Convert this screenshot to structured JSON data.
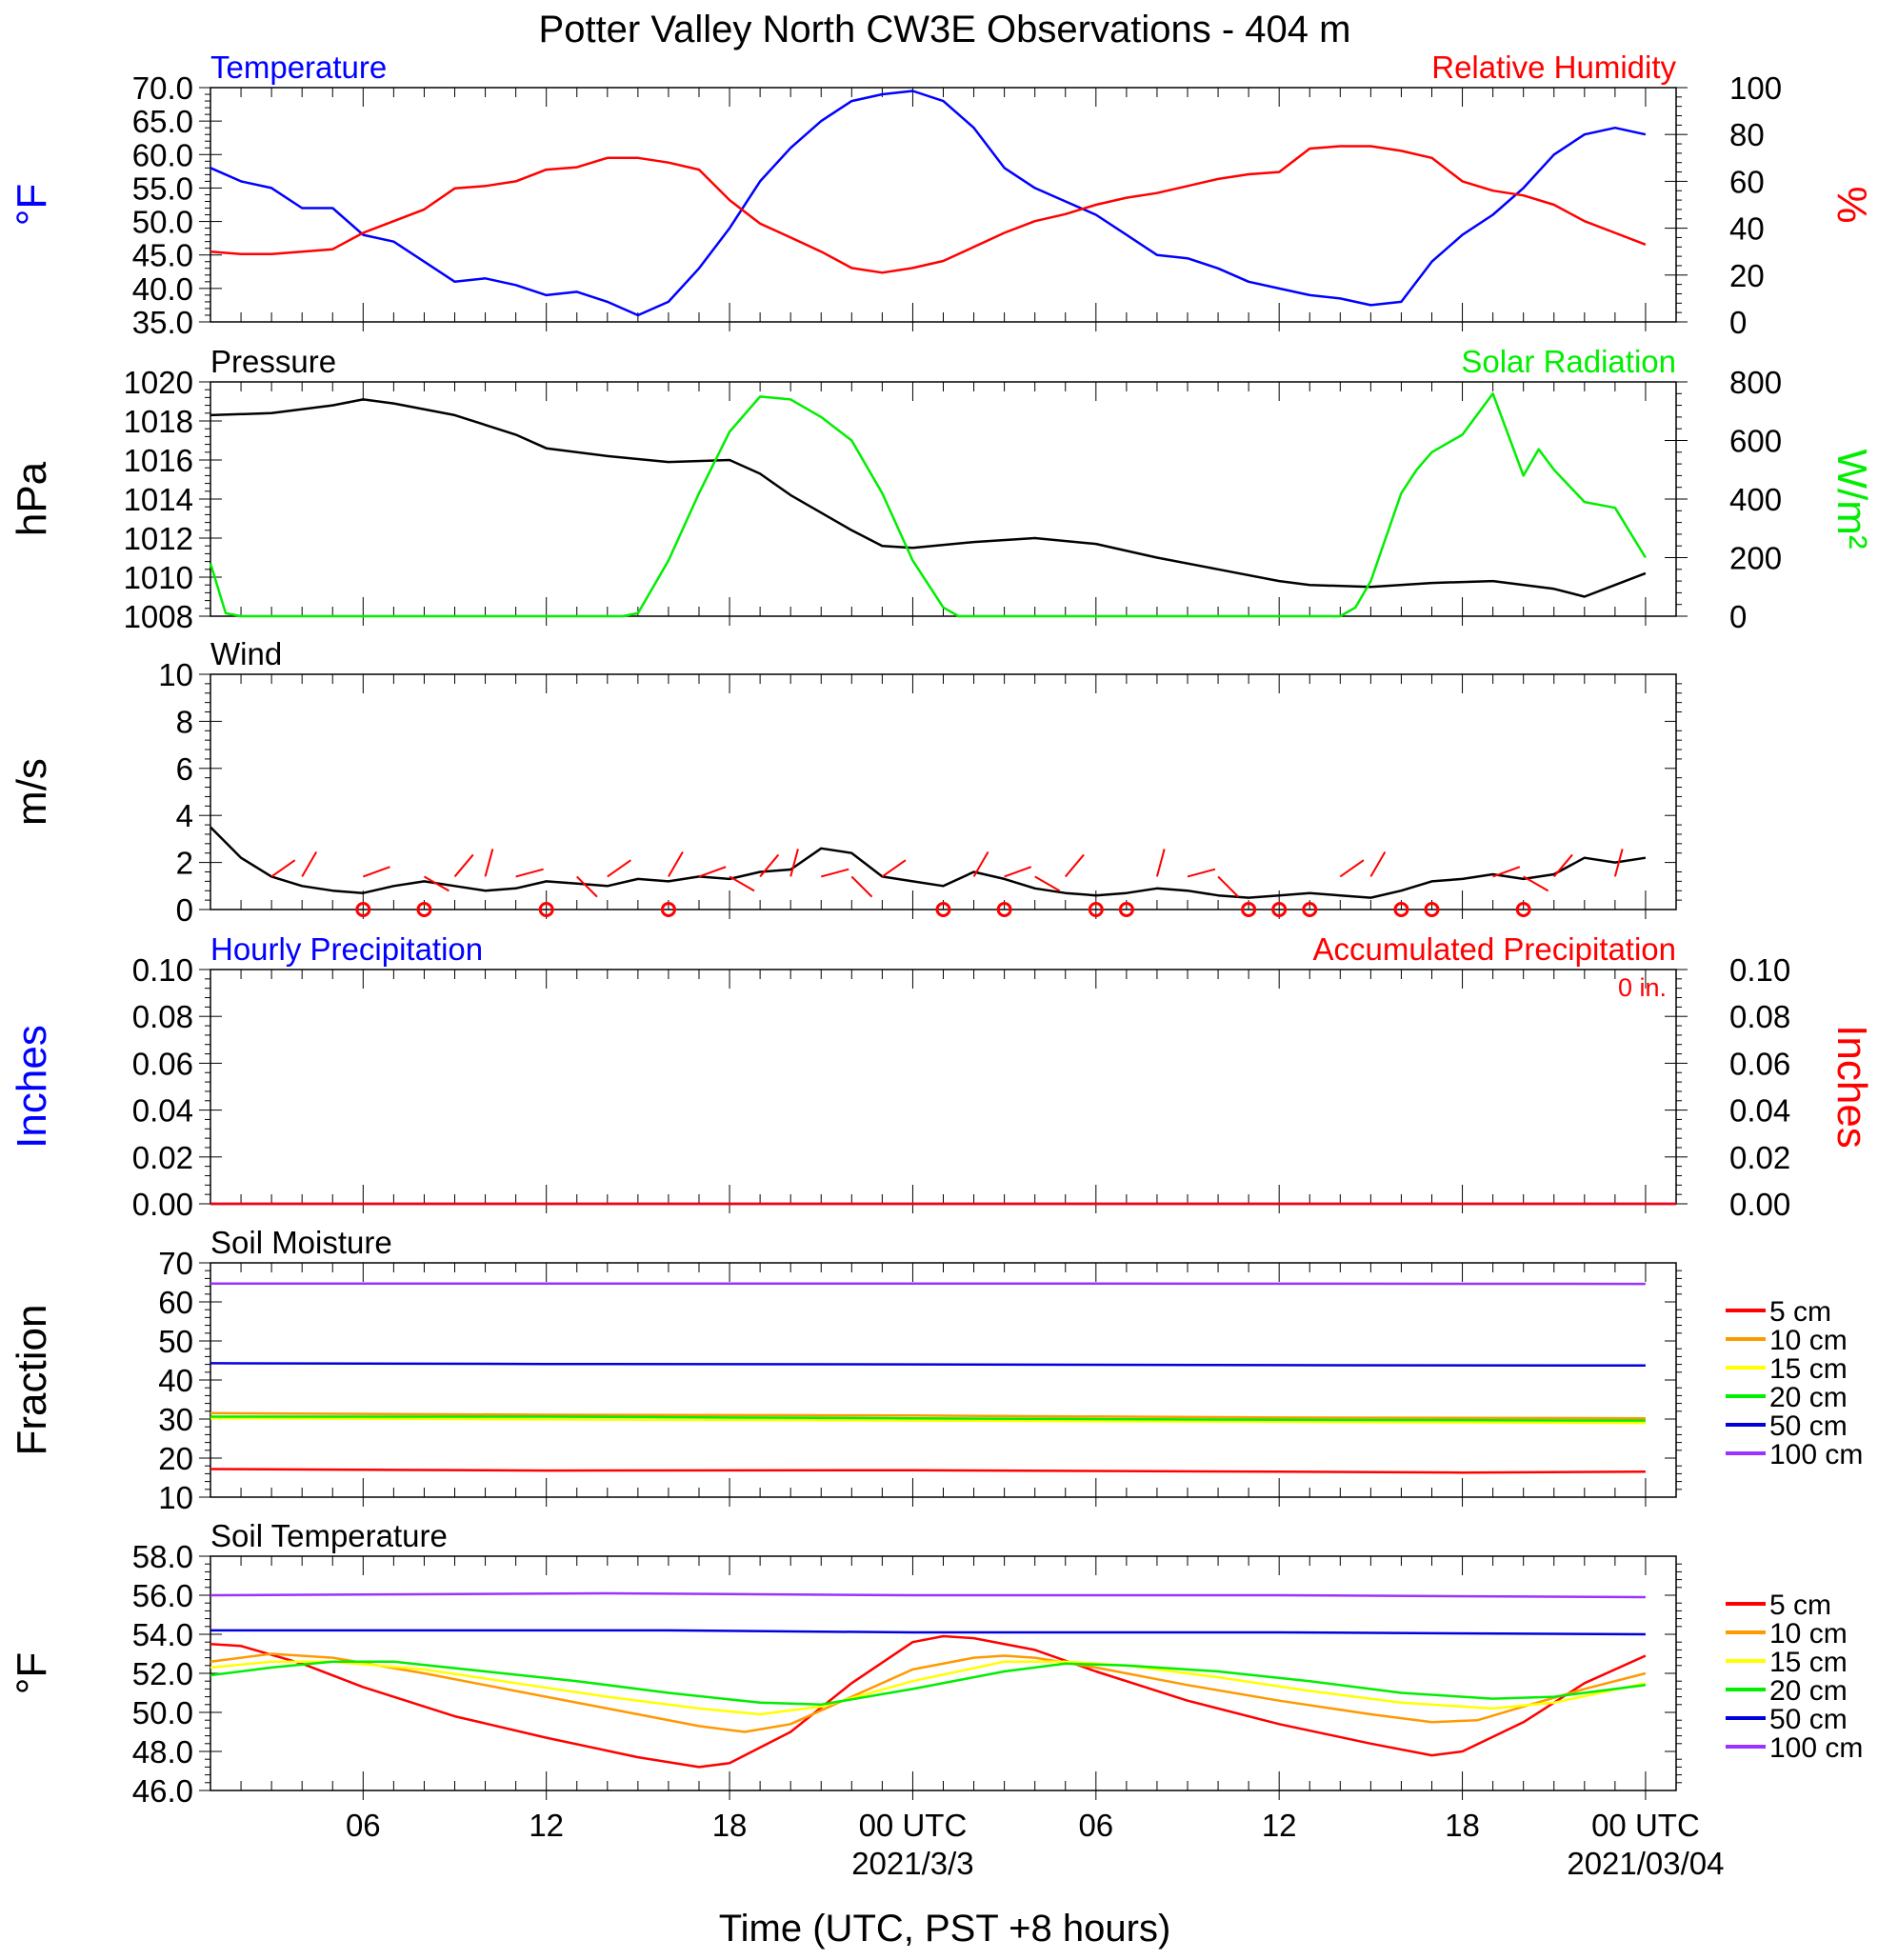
{
  "title": "Potter Valley North CW3E Observations - 404 m",
  "xaxis": {
    "label": "Time (UTC, PST +8 hours)",
    "ticks": [
      {
        "t": 6,
        "label": "06"
      },
      {
        "t": 12,
        "label": "12"
      },
      {
        "t": 18,
        "label": "18"
      },
      {
        "t": 24,
        "label": "00 UTC"
      },
      {
        "t": 30,
        "label": "06"
      },
      {
        "t": 36,
        "label": "12"
      },
      {
        "t": 42,
        "label": "18"
      },
      {
        "t": 48,
        "label": "00 UTC"
      }
    ],
    "dates": [
      {
        "t": 24,
        "label": "2021/3/3"
      },
      {
        "t": 48,
        "label": "2021/03/04"
      }
    ],
    "range": [
      1,
      49
    ]
  },
  "colors": {
    "blue": "#0000ff",
    "red": "#ff0000",
    "green": "#00ee00",
    "black": "#000000",
    "orange": "#ff9900",
    "yellow": "#ffff00",
    "purple": "#9933ff"
  },
  "chart_data": [
    {
      "id": "temp_rh",
      "type": "line",
      "title_left": "Temperature",
      "title_right": "Relative Humidity",
      "ylabel_left": "°F",
      "ylabel_right": "%",
      "ylim_left": [
        35,
        70
      ],
      "ylim_right": [
        0,
        100
      ],
      "yticks_left": [
        "35.0",
        "40.0",
        "45.0",
        "50.0",
        "55.0",
        "60.0",
        "65.0",
        "70.0"
      ],
      "yticks_right": [
        "0",
        "20",
        "40",
        "60",
        "80",
        "100"
      ],
      "series": [
        {
          "name": "Temperature",
          "axis": "left",
          "color": "#0000ff",
          "x": [
            1,
            2,
            3,
            4,
            5,
            6,
            7,
            8,
            9,
            10,
            11,
            12,
            13,
            14,
            15,
            16,
            17,
            18,
            19,
            20,
            21,
            22,
            23,
            24,
            25,
            26,
            27,
            28,
            29,
            30,
            31,
            32,
            33,
            34,
            35,
            36,
            37,
            38,
            39,
            40,
            41,
            42,
            43,
            44,
            45,
            46,
            47,
            48
          ],
          "y": [
            58,
            56,
            55,
            52,
            52,
            48,
            47,
            44,
            41,
            41.5,
            40.5,
            39,
            39.5,
            38,
            36,
            38,
            43,
            49,
            56,
            61,
            65,
            68,
            69,
            69.5,
            68,
            64,
            58,
            55,
            53,
            51,
            48,
            45,
            44.5,
            43,
            41,
            40,
            39,
            38.5,
            37.5,
            38,
            44,
            48,
            51,
            55,
            60,
            63,
            64,
            63
          ]
        },
        {
          "name": "Relative Humidity",
          "axis": "right",
          "color": "#ff0000",
          "x": [
            1,
            2,
            3,
            4,
            5,
            6,
            7,
            8,
            9,
            10,
            11,
            12,
            13,
            14,
            15,
            16,
            17,
            18,
            19,
            20,
            21,
            22,
            23,
            24,
            25,
            26,
            27,
            28,
            29,
            30,
            31,
            32,
            33,
            34,
            35,
            36,
            37,
            38,
            39,
            40,
            41,
            42,
            43,
            44,
            45,
            46,
            47,
            48
          ],
          "y": [
            30,
            29,
            29,
            30,
            31,
            38,
            43,
            48,
            57,
            58,
            60,
            65,
            66,
            70,
            70,
            68,
            65,
            52,
            42,
            36,
            30,
            23,
            21,
            23,
            26,
            32,
            38,
            43,
            46,
            50,
            53,
            55,
            58,
            61,
            63,
            64,
            74,
            75,
            75,
            73,
            70,
            60,
            56,
            54,
            50,
            43,
            38,
            33
          ]
        }
      ]
    },
    {
      "id": "pressure_solar",
      "type": "line",
      "title_left": "Pressure",
      "title_right": "Solar Radiation",
      "ylabel_left": "hPa",
      "ylabel_right": "W/m²",
      "ylim_left": [
        1008,
        1020
      ],
      "ylim_right": [
        0,
        800
      ],
      "yticks_left": [
        "1008",
        "1010",
        "1012",
        "1014",
        "1016",
        "1018",
        "1020"
      ],
      "yticks_right": [
        "0",
        "200",
        "400",
        "600",
        "800"
      ],
      "series": [
        {
          "name": "Pressure",
          "axis": "left",
          "color": "#000000",
          "x": [
            1,
            3,
            5,
            6,
            7,
            9,
            11,
            12,
            14,
            16,
            18,
            19,
            20,
            22,
            23,
            24,
            26,
            28,
            30,
            32,
            34,
            36,
            37,
            39,
            41,
            43,
            45,
            46,
            47,
            48
          ],
          "y": [
            1018.3,
            1018.4,
            1018.8,
            1019.1,
            1018.9,
            1018.3,
            1017.3,
            1016.6,
            1016.2,
            1015.9,
            1016.0,
            1015.3,
            1014.2,
            1012.4,
            1011.6,
            1011.5,
            1011.8,
            1012.0,
            1011.7,
            1011.0,
            1010.4,
            1009.8,
            1009.6,
            1009.5,
            1009.7,
            1009.8,
            1009.4,
            1009.0,
            1009.6,
            1010.2
          ]
        },
        {
          "name": "Solar Radiation",
          "axis": "right",
          "color": "#00ee00",
          "x": [
            1,
            1.5,
            2,
            14.5,
            15,
            16,
            17,
            18,
            19,
            20,
            21,
            21.5,
            22,
            23,
            24,
            25,
            25.5,
            26,
            38,
            38.5,
            39,
            40,
            40.5,
            41,
            42,
            43,
            44,
            44.5,
            45,
            46,
            47,
            48
          ],
          "y": [
            180,
            10,
            0,
            0,
            10,
            190,
            420,
            630,
            750,
            740,
            680,
            640,
            600,
            420,
            190,
            30,
            0,
            0,
            0,
            30,
            120,
            420,
            500,
            560,
            620,
            760,
            480,
            570,
            500,
            390,
            370,
            200
          ]
        }
      ]
    },
    {
      "id": "wind",
      "type": "line",
      "title_left": "Wind",
      "ylabel_left": "m/s",
      "ylim_left": [
        0,
        10
      ],
      "yticks_left": [
        "0",
        "2",
        "4",
        "6",
        "8",
        "10"
      ],
      "series": [
        {
          "name": "Wind",
          "axis": "left",
          "color": "#000000",
          "x": [
            1,
            2,
            3,
            4,
            5,
            6,
            7,
            8,
            9,
            10,
            11,
            12,
            13,
            14,
            15,
            16,
            17,
            18,
            19,
            20,
            21,
            22,
            23,
            24,
            25,
            26,
            27,
            28,
            29,
            30,
            31,
            32,
            33,
            34,
            35,
            36,
            37,
            38,
            39,
            40,
            41,
            42,
            43,
            44,
            45,
            46,
            47,
            48
          ],
          "y": [
            3.5,
            2.2,
            1.4,
            1.0,
            0.8,
            0.7,
            1.0,
            1.2,
            1.0,
            0.8,
            0.9,
            1.2,
            1.1,
            1.0,
            1.3,
            1.2,
            1.4,
            1.3,
            1.6,
            1.7,
            2.6,
            2.4,
            1.4,
            1.2,
            1.0,
            1.6,
            1.3,
            0.9,
            0.7,
            0.6,
            0.7,
            0.9,
            0.8,
            0.6,
            0.5,
            0.6,
            0.7,
            0.6,
            0.5,
            0.8,
            1.2,
            1.3,
            1.5,
            1.3,
            1.5,
            2.2,
            2.0,
            2.2
          ]
        }
      ],
      "calm_marker_times": [
        6,
        8,
        12,
        16,
        25,
        27,
        30,
        31,
        35,
        36,
        37,
        40,
        41,
        44
      ],
      "barb_times": [
        3,
        4,
        6,
        8,
        9,
        10,
        11,
        13,
        14,
        16,
        17,
        18,
        19,
        20,
        21,
        22,
        23,
        26,
        27,
        28,
        29,
        32,
        33,
        34,
        38,
        39,
        43,
        44,
        45,
        47
      ]
    },
    {
      "id": "precip",
      "type": "line",
      "title_left": "Hourly Precipitation",
      "title_right": "Accumulated Precipitation",
      "annotation": "0 in.",
      "ylabel_left": "Inches",
      "ylabel_right": "Inches",
      "ylim_left": [
        0,
        0.1
      ],
      "ylim_right": [
        0,
        0.1
      ],
      "yticks_left": [
        "0.00",
        "0.02",
        "0.04",
        "0.06",
        "0.08",
        "0.10"
      ],
      "yticks_right": [
        "0.00",
        "0.02",
        "0.04",
        "0.06",
        "0.08",
        "0.10"
      ],
      "series": [
        {
          "name": "Hourly Precipitation",
          "axis": "left",
          "color": "#0000ff",
          "x": [
            1,
            49
          ],
          "y": [
            0,
            0
          ]
        },
        {
          "name": "Accumulated Precipitation",
          "axis": "right",
          "color": "#ff0000",
          "x": [
            1,
            49
          ],
          "y": [
            0,
            0
          ]
        }
      ]
    },
    {
      "id": "soil_moisture",
      "type": "line",
      "title_left": "Soil Moisture",
      "ylabel_left": "Fraction",
      "ylim_left": [
        10,
        70
      ],
      "yticks_left": [
        "10",
        "20",
        "30",
        "40",
        "50",
        "60",
        "70"
      ],
      "legend": [
        "5 cm",
        "10 cm",
        "15 cm",
        "20 cm",
        "50 cm",
        "100 cm"
      ],
      "series": [
        {
          "name": "5 cm",
          "axis": "left",
          "color": "#ff0000",
          "x": [
            1,
            12,
            24,
            36,
            42,
            48
          ],
          "y": [
            17.2,
            16.8,
            16.9,
            16.5,
            16.3,
            16.5
          ]
        },
        {
          "name": "10 cm",
          "axis": "left",
          "color": "#ff9900",
          "x": [
            1,
            12,
            24,
            36,
            48
          ],
          "y": [
            31.5,
            31.1,
            30.9,
            30.4,
            30.2
          ]
        },
        {
          "name": "15 cm",
          "axis": "left",
          "color": "#ffff00",
          "x": [
            1,
            12,
            24,
            36,
            48
          ],
          "y": [
            30.2,
            29.9,
            29.6,
            29.3,
            29.0
          ]
        },
        {
          "name": "20 cm",
          "axis": "left",
          "color": "#00ee00",
          "x": [
            1,
            12,
            24,
            36,
            48
          ],
          "y": [
            30.6,
            30.6,
            30.2,
            29.8,
            29.6
          ]
        },
        {
          "name": "50 cm",
          "axis": "left",
          "color": "#0000dd",
          "x": [
            1,
            12,
            24,
            36,
            48
          ],
          "y": [
            44.3,
            44.1,
            44.0,
            43.8,
            43.7
          ]
        },
        {
          "name": "100 cm",
          "axis": "left",
          "color": "#9933ff",
          "x": [
            1,
            24,
            48
          ],
          "y": [
            64.7,
            64.7,
            64.6
          ]
        }
      ]
    },
    {
      "id": "soil_temp",
      "type": "line",
      "title_left": "Soil Temperature",
      "ylabel_left": "°F",
      "ylim_left": [
        46,
        58
      ],
      "yticks_left": [
        "46.0",
        "48.0",
        "50.0",
        "52.0",
        "54.0",
        "56.0",
        "58.0"
      ],
      "legend": [
        "5 cm",
        "10 cm",
        "15 cm",
        "20 cm",
        "50 cm",
        "100 cm"
      ],
      "series": [
        {
          "name": "5 cm",
          "axis": "left",
          "color": "#ff0000",
          "x": [
            1,
            2,
            4,
            6,
            9,
            12,
            15,
            17,
            18,
            20,
            22,
            24,
            25,
            26,
            28,
            30,
            33,
            36,
            39,
            41,
            42,
            44,
            46,
            48
          ],
          "y": [
            53.5,
            53.4,
            52.5,
            51.3,
            49.8,
            48.7,
            47.7,
            47.2,
            47.4,
            49.0,
            51.5,
            53.6,
            53.9,
            53.8,
            53.2,
            52.1,
            50.6,
            49.4,
            48.4,
            47.8,
            48.0,
            49.5,
            51.5,
            52.9
          ]
        },
        {
          "name": "10 cm",
          "axis": "left",
          "color": "#ff9900",
          "x": [
            1,
            3,
            5,
            8,
            11,
            14,
            17,
            18.5,
            20,
            22,
            24,
            26,
            27,
            28,
            30,
            33,
            36,
            39,
            41,
            42.5,
            44,
            46,
            48
          ],
          "y": [
            52.6,
            53.0,
            52.8,
            52.0,
            51.1,
            50.2,
            49.3,
            49.0,
            49.4,
            50.8,
            52.2,
            52.8,
            52.9,
            52.8,
            52.3,
            51.4,
            50.6,
            49.9,
            49.5,
            49.6,
            50.3,
            51.2,
            52.0
          ]
        },
        {
          "name": "15 cm",
          "axis": "left",
          "color": "#ffff00",
          "x": [
            1,
            3,
            5,
            8,
            11,
            14,
            17,
            19,
            21,
            24,
            27,
            29,
            31,
            34,
            37,
            40,
            43,
            45,
            48
          ],
          "y": [
            52.3,
            52.6,
            52.6,
            52.2,
            51.5,
            50.8,
            50.2,
            49.9,
            50.3,
            51.6,
            52.6,
            52.6,
            52.4,
            51.8,
            51.1,
            50.5,
            50.2,
            50.5,
            51.5
          ]
        },
        {
          "name": "20 cm",
          "axis": "left",
          "color": "#00ee00",
          "x": [
            1,
            3,
            5,
            7,
            10,
            13,
            16,
            19,
            21,
            24,
            27,
            29,
            31,
            34,
            37,
            40,
            43,
            45,
            48
          ],
          "y": [
            51.9,
            52.3,
            52.6,
            52.6,
            52.1,
            51.6,
            51.0,
            50.5,
            50.4,
            51.2,
            52.1,
            52.5,
            52.4,
            52.1,
            51.6,
            51.0,
            50.7,
            50.8,
            51.4
          ]
        },
        {
          "name": "50 cm",
          "axis": "left",
          "color": "#0000dd",
          "x": [
            1,
            12,
            16,
            24,
            36,
            48
          ],
          "y": [
            54.2,
            54.2,
            54.2,
            54.1,
            54.1,
            54.0
          ]
        },
        {
          "name": "100 cm",
          "axis": "left",
          "color": "#9933ff",
          "x": [
            1,
            14,
            24,
            36,
            48
          ],
          "y": [
            56.0,
            56.1,
            56.0,
            56.0,
            55.9
          ]
        }
      ]
    }
  ]
}
